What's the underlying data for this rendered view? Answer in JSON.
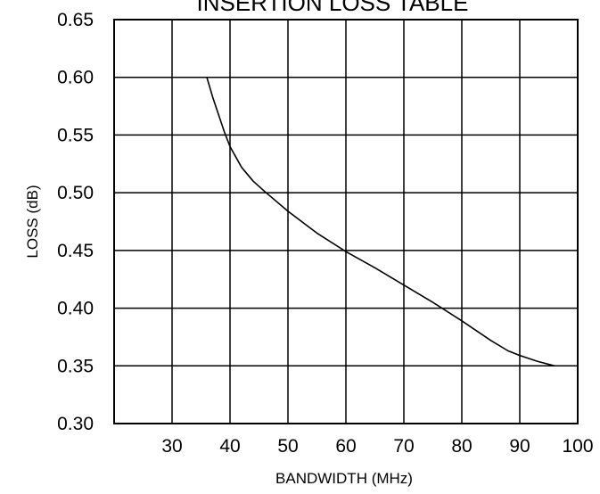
{
  "chart_data": {
    "type": "line",
    "title": "INSERTION LOSS TABLE",
    "xlabel": "BANDWIDTH (MHz)",
    "ylabel": "LOSS (dB)",
    "xlim": [
      20,
      100
    ],
    "ylim": [
      0.3,
      0.65
    ],
    "x_ticks": [
      30,
      40,
      50,
      60,
      70,
      80,
      90,
      100
    ],
    "x_tick_labels": [
      "30",
      "40",
      "50",
      "60",
      "70",
      "80",
      "90",
      "100"
    ],
    "y_ticks": [
      0.3,
      0.35,
      0.4,
      0.45,
      0.5,
      0.55,
      0.6,
      0.65
    ],
    "y_tick_labels": [
      "0.30",
      "0.35",
      "0.40",
      "0.45",
      "0.50",
      "0.55",
      "0.60",
      "0.65"
    ],
    "grid": true,
    "legend": "none",
    "line_color": "#000000",
    "series": [
      {
        "x": [
          36,
          37,
          38,
          39,
          40,
          42,
          44,
          46,
          50,
          55,
          60,
          65,
          70,
          75,
          80,
          85,
          88,
          90,
          93,
          96
        ],
        "y": [
          0.6,
          0.583,
          0.568,
          0.553,
          0.54,
          0.522,
          0.51,
          0.501,
          0.484,
          0.465,
          0.449,
          0.435,
          0.42,
          0.405,
          0.389,
          0.372,
          0.363,
          0.359,
          0.354,
          0.35
        ]
      }
    ]
  }
}
